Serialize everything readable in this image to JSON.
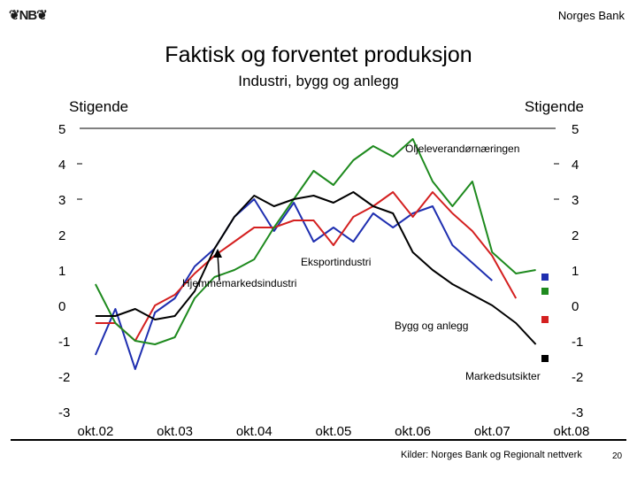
{
  "header": {
    "logo_text": "❦NB❦",
    "brand": "Norges Bank"
  },
  "footer": {
    "source": "Kilder: Norges Bank og Regionalt nettverk",
    "page_number": "20"
  },
  "colors": {
    "eksport": "#1f2fb0",
    "hjemme": "#d42020",
    "olje": "#1e8a1e",
    "bygg": "#000000",
    "axis": "#000000"
  },
  "chart_data": {
    "type": "line",
    "title": "Faktisk og forventet produksjon",
    "subtitle": "Industri, bygg og anlegg",
    "ylabel_left": "Stigende",
    "ylabel_right": "Stigende",
    "ylim": [
      -3,
      5
    ],
    "yticks": [
      "5",
      "4",
      "3",
      "2",
      "1",
      "0",
      "-1",
      "-2",
      "-3"
    ],
    "xticks": [
      "okt.02",
      "okt.03",
      "okt.04",
      "okt.05",
      "okt.06",
      "okt.07",
      "okt.08"
    ],
    "x_range": [
      2002.6,
      2008.6
    ],
    "series": [
      {
        "name": "Eksportindustri",
        "color_key": "eksport",
        "x": [
          2002.8,
          2003.05,
          2003.3,
          2003.55,
          2003.8,
          2004.05,
          2004.3,
          2004.55,
          2004.8,
          2005.05,
          2005.3,
          2005.55,
          2005.8,
          2006.05,
          2006.3,
          2006.55,
          2006.8,
          2007.05,
          2007.3,
          2007.55,
          2007.8
        ],
        "y": [
          -1.4,
          -0.1,
          -1.8,
          -0.2,
          0.2,
          1.1,
          1.6,
          2.5,
          3.0,
          2.1,
          2.9,
          1.8,
          2.2,
          1.8,
          2.6,
          2.2,
          2.6,
          2.8,
          1.7,
          1.2,
          0.7
        ]
      },
      {
        "name": "Hjemmemarkedsindustri",
        "color_key": "hjemme",
        "x": [
          2002.8,
          2003.05,
          2003.3,
          2003.55,
          2003.8,
          2004.05,
          2004.3,
          2004.55,
          2004.8,
          2005.05,
          2005.3,
          2005.55,
          2005.8,
          2006.05,
          2006.3,
          2006.55,
          2006.8,
          2007.05,
          2007.3,
          2007.55,
          2007.8,
          2008.1
        ],
        "y": [
          -0.5,
          -0.5,
          -1.0,
          0.0,
          0.3,
          0.9,
          1.4,
          1.8,
          2.2,
          2.2,
          2.4,
          2.4,
          1.7,
          2.5,
          2.8,
          3.2,
          2.5,
          3.2,
          2.6,
          2.1,
          1.4,
          0.2
        ]
      },
      {
        "name": "Oljeleverandørnæringen",
        "color_key": "olje",
        "x": [
          2002.8,
          2003.05,
          2003.3,
          2003.55,
          2003.8,
          2004.05,
          2004.3,
          2004.55,
          2004.8,
          2005.05,
          2005.3,
          2005.55,
          2005.8,
          2006.05,
          2006.3,
          2006.55,
          2006.8,
          2007.05,
          2007.3,
          2007.55,
          2007.8,
          2008.1,
          2008.35
        ],
        "y": [
          0.6,
          -0.5,
          -1.0,
          -1.1,
          -0.9,
          0.2,
          0.8,
          1.0,
          1.3,
          2.2,
          3.0,
          3.8,
          3.4,
          4.1,
          4.5,
          4.2,
          4.7,
          3.5,
          2.8,
          3.5,
          1.5,
          0.9,
          1.0
        ]
      },
      {
        "name": "Bygg og anlegg",
        "color_key": "bygg",
        "x": [
          2002.8,
          2003.05,
          2003.3,
          2003.55,
          2003.8,
          2004.05,
          2004.3,
          2004.55,
          2004.8,
          2005.05,
          2005.3,
          2005.55,
          2005.8,
          2006.05,
          2006.3,
          2006.55,
          2006.8,
          2007.05,
          2007.3,
          2007.55,
          2007.8,
          2008.1,
          2008.35
        ],
        "y": [
          -0.3,
          -0.3,
          -0.1,
          -0.4,
          -0.3,
          0.4,
          1.6,
          2.5,
          3.1,
          2.8,
          3.0,
          3.1,
          2.9,
          3.2,
          2.8,
          2.6,
          1.5,
          1.0,
          0.6,
          0.3,
          0.0,
          -0.5,
          -1.1
        ]
      }
    ],
    "annotations": [
      {
        "text": "Oljeleverandørnæringen",
        "series": "Oljeleverandørnæringen"
      },
      {
        "text": "Eksportindustri",
        "series": "Eksportindustri"
      },
      {
        "text": "Hjemmemarkedsindustri",
        "series": "Hjemmemarkedsindustri"
      },
      {
        "text": "Bygg og anlegg",
        "series": "Bygg og anlegg"
      },
      {
        "text": "Markedsutsikter",
        "series": "Markedsutsikter"
      }
    ],
    "forecasts": [
      {
        "series": "Eksportindustri",
        "color_key": "eksport",
        "x": 2008.6,
        "y": 0.8
      },
      {
        "series": "Oljeleverandørnæringen",
        "color_key": "olje",
        "x": 2008.6,
        "y": 0.4
      },
      {
        "series": "Hjemmemarkedsindustri",
        "color_key": "hjemme",
        "x": 2008.6,
        "y": -0.4
      },
      {
        "series": "Bygg og anlegg",
        "color_key": "bygg",
        "x": 2008.6,
        "y": -1.5
      }
    ]
  }
}
